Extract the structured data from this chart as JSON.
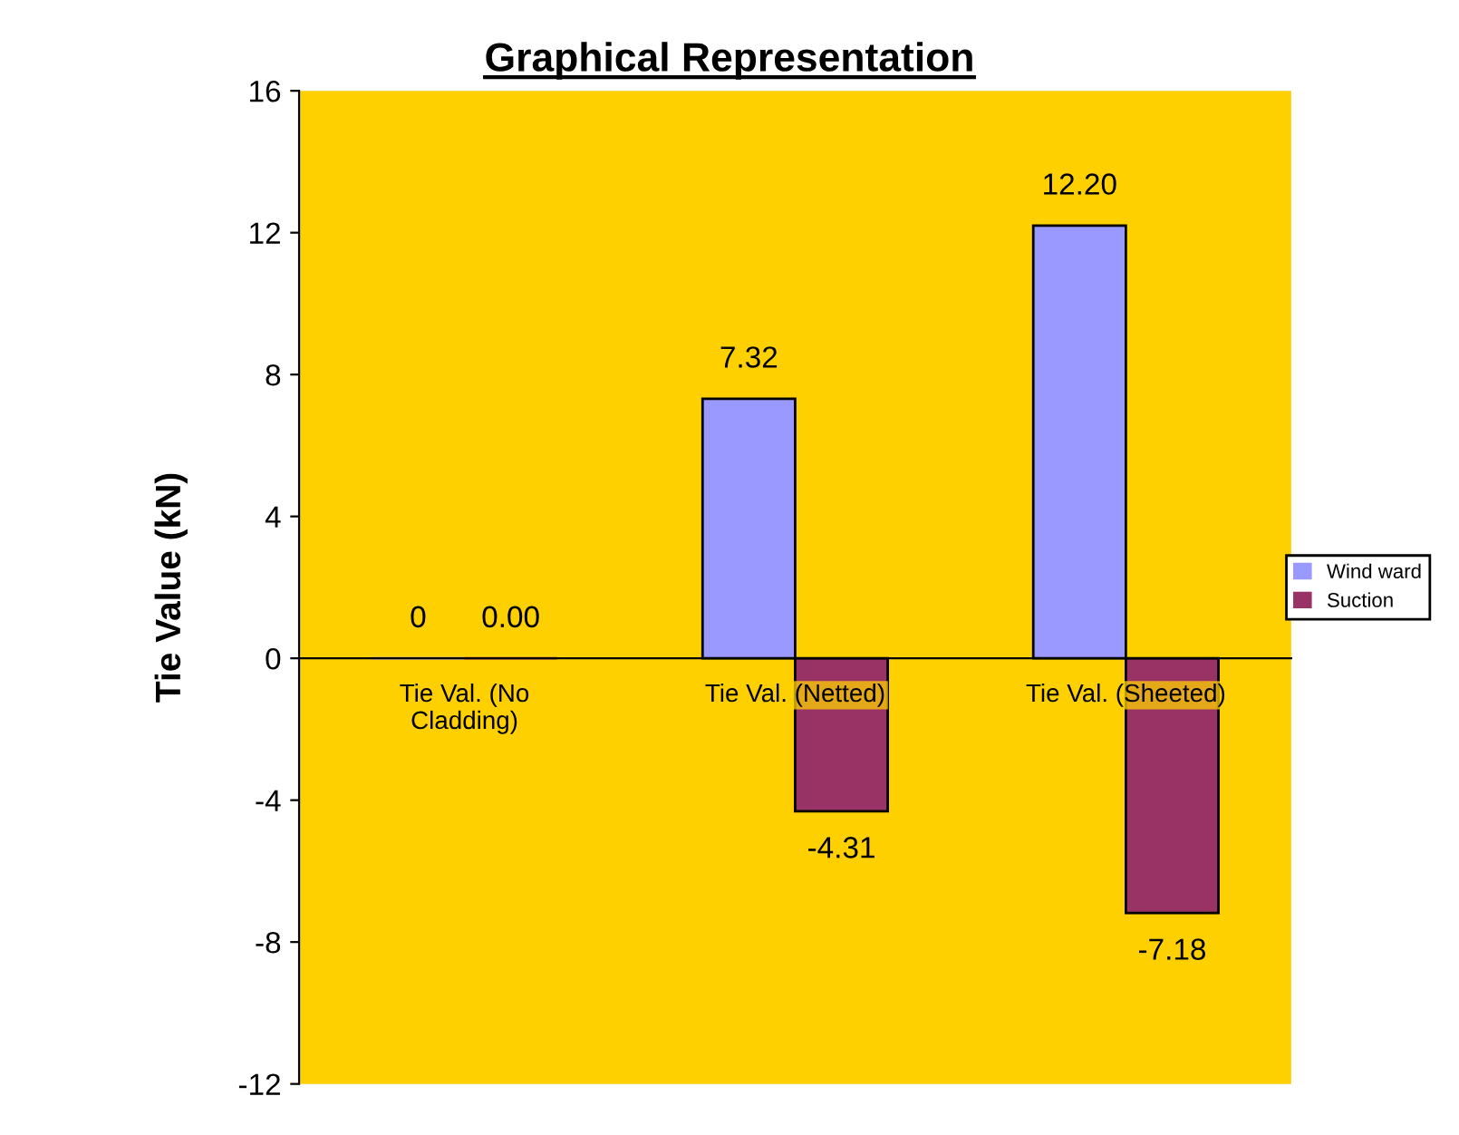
{
  "chart_data": {
    "type": "bar",
    "title": "Graphical Representation",
    "ylabel": "Tie Value (kN)",
    "categories": [
      "Tie Val. (No Cladding)",
      "Tie Val. (Netted)",
      "Tie Val. (Sheeted)"
    ],
    "series": [
      {
        "name": "Wind ward",
        "color": "#9999ff",
        "values": [
          0,
          7.32,
          12.2
        ],
        "value_labels": [
          "0",
          "7.32",
          "12.20"
        ]
      },
      {
        "name": "Suction",
        "color": "#993366",
        "values": [
          0,
          -4.31,
          -7.18
        ],
        "value_labels": [
          "0.00",
          "-4.31",
          "-7.18"
        ]
      }
    ],
    "ylim": [
      -12,
      16
    ],
    "yticks": [
      -12,
      -8,
      -4,
      0,
      4,
      8,
      12,
      16
    ],
    "grid": false,
    "legend": "right"
  }
}
